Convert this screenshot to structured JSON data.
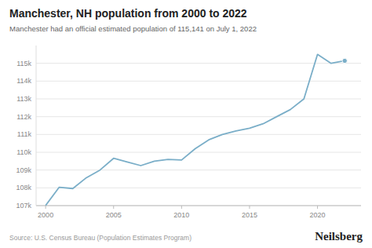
{
  "chart_data": {
    "type": "line",
    "title": "Manchester, NH population from 2000 to 2022",
    "subtitle": "Manchester had an official estimated population of 115,141 on July 1, 2022",
    "annotations": [
      "Source: U.S. Census Bureau (Population Estimates Program)",
      "Neilsberg"
    ],
    "x": [
      2000,
      2001,
      2002,
      2003,
      2004,
      2005,
      2006,
      2007,
      2008,
      2009,
      2010,
      2011,
      2012,
      2013,
      2014,
      2015,
      2016,
      2017,
      2018,
      2019,
      2020,
      2021,
      2022
    ],
    "values": [
      107006,
      108034,
      107960,
      108570,
      109000,
      109660,
      109450,
      109250,
      109500,
      109600,
      109565,
      110200,
      110700,
      111000,
      111200,
      111350,
      111600,
      112000,
      112400,
      113000,
      115500,
      115000,
      115141
    ],
    "color": "#7aaec8",
    "xlim": [
      1999.3,
      2023.2
    ],
    "xticks": [
      2000,
      2005,
      2010,
      2015,
      2020
    ],
    "ylim": [
      107000,
      116000
    ],
    "yticks": [
      {
        "value": 107000,
        "label": "107k"
      },
      {
        "value": 108000,
        "label": "108k"
      },
      {
        "value": 109000,
        "label": "109k"
      },
      {
        "value": 110000,
        "label": "110k"
      },
      {
        "value": 111000,
        "label": "111k"
      },
      {
        "value": 112000,
        "label": "112k"
      },
      {
        "value": 113000,
        "label": "113k"
      },
      {
        "value": 114000,
        "label": "114k"
      },
      {
        "value": 115000,
        "label": "115k"
      }
    ],
    "grid": true
  }
}
